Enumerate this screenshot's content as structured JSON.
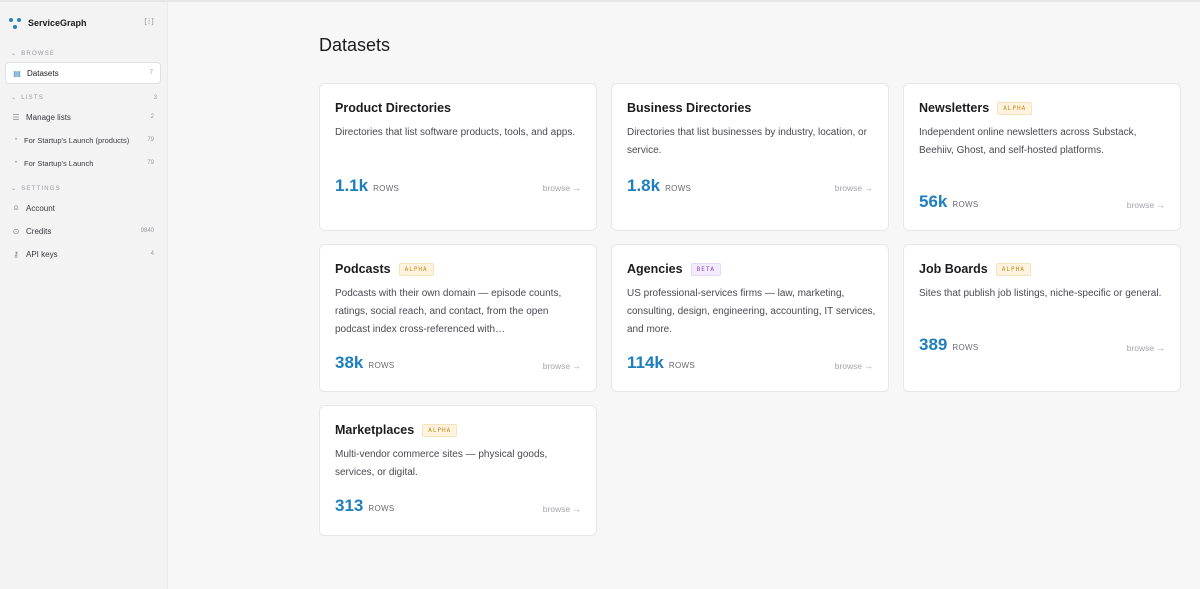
{
  "app": {
    "name": "ServiceGraph",
    "collapse_label": "[⁞]"
  },
  "sidebar": {
    "browse": {
      "heading": "BROWSE"
    },
    "datasets": {
      "label": "Datasets",
      "count": "7"
    },
    "lists": {
      "heading": "LISTS",
      "count": "3",
      "manage": {
        "label": "Manage lists",
        "count": "2"
      },
      "items": [
        {
          "label": "For Startup's Launch (products)",
          "count": "79"
        },
        {
          "label": "For Startup's Launch",
          "count": "79"
        }
      ]
    },
    "settings": {
      "heading": "SETTINGS",
      "account": {
        "label": "Account"
      },
      "credits": {
        "label": "Credits",
        "count": "9840"
      },
      "api_keys": {
        "label": "API keys",
        "count": "4"
      }
    }
  },
  "main": {
    "title": "Datasets",
    "browse_label": "browse →",
    "rows_label": "ROWS",
    "cards": [
      {
        "title": "Product Directories",
        "badge": "",
        "description": "Directories that list software products, tools, and apps.",
        "rows": "1.1k"
      },
      {
        "title": "Business Directories",
        "badge": "",
        "description": "Directories that list businesses by industry, location, or service.",
        "rows": "1.8k"
      },
      {
        "title": "Newsletters",
        "badge": "ALPHA",
        "description": "Independent online newsletters across Substack, Beehiiv, Ghost, and self-hosted platforms.",
        "rows": "56k"
      },
      {
        "title": "Podcasts",
        "badge": "ALPHA",
        "description": "Podcasts with their own domain — episode counts, ratings, social reach, and contact, from the open podcast index cross-referenced with…",
        "rows": "38k"
      },
      {
        "title": "Agencies",
        "badge": "BETA",
        "description": "US professional-services firms — law, marketing, consulting, design, engineering, accounting, IT services, and more.",
        "rows": "114k"
      },
      {
        "title": "Job Boards",
        "badge": "ALPHA",
        "description": "Sites that publish job listings, niche-specific or general.",
        "rows": "389"
      },
      {
        "title": "Marketplaces",
        "badge": "ALPHA",
        "description": "Multi-vendor commerce sites — physical goods, services, or digital.",
        "rows": "313"
      }
    ]
  },
  "colors": {
    "accent": "#1e7fbe",
    "alpha_badge": "#c48a1c",
    "beta_badge": "#8a4cc8"
  }
}
